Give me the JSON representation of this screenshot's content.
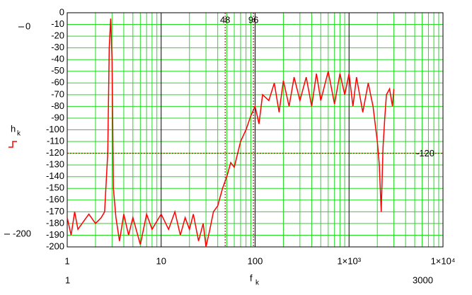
{
  "chart_data": {
    "type": "line",
    "ylabel": "h",
    "ylabel_sub": "k",
    "xlabel": "f",
    "xlabel_sub": "k",
    "log_x": true,
    "grid": true,
    "grid_color": "#22dd22",
    "major_grid_color": "#000000",
    "xlim": [
      1,
      10000
    ],
    "ylim": [
      -200,
      0
    ],
    "xticks": [
      1,
      10,
      100,
      {
        "value": 1000,
        "label": "1×10³"
      },
      {
        "value": 10000,
        "label": "1×10⁴"
      }
    ],
    "yticks": [
      0,
      -10,
      -20,
      -30,
      -40,
      -50,
      -60,
      -70,
      -80,
      -90,
      -100,
      -110,
      -120,
      -130,
      -140,
      -150,
      -160,
      -170,
      -180,
      -190,
      -200
    ],
    "data_range": [
      1,
      3000
    ],
    "markers_x": [
      48,
      96
    ],
    "markers_y": [
      -120
    ],
    "series": [
      {
        "color": "#ff0000",
        "x": [
          1,
          1.1,
          1.2,
          1.3,
          1.5,
          1.7,
          2,
          2.3,
          2.5,
          2.7,
          2.8,
          2.9,
          3.0,
          3.1,
          3.3,
          3.6,
          4,
          4.5,
          5,
          6,
          7,
          8,
          9,
          10,
          12,
          14,
          16,
          18,
          20,
          22,
          25,
          28,
          30,
          33,
          36,
          40,
          45,
          50,
          55,
          60,
          70,
          80,
          90,
          100,
          110,
          120,
          140,
          160,
          180,
          200,
          230,
          260,
          300,
          350,
          400,
          450,
          500,
          600,
          700,
          800,
          900,
          1000,
          1100,
          1200,
          1400,
          1600,
          1800,
          2000,
          2100,
          2200,
          2300,
          2400,
          2500,
          2700,
          2900,
          3000
        ],
        "values": [
          -175,
          -190,
          -170,
          -185,
          -178,
          -172,
          -180,
          -175,
          -170,
          -120,
          -30,
          -5,
          -40,
          -150,
          -175,
          -195,
          -172,
          -190,
          -175,
          -198,
          -172,
          -185,
          -178,
          -172,
          -185,
          -170,
          -190,
          -175,
          -185,
          -172,
          -195,
          -180,
          -200,
          -185,
          -170,
          -165,
          -150,
          -140,
          -128,
          -132,
          -110,
          -100,
          -88,
          -80,
          -95,
          -70,
          -75,
          -60,
          -85,
          -58,
          -80,
          -55,
          -75,
          -55,
          -80,
          -52,
          -75,
          -50,
          -78,
          -52,
          -70,
          -52,
          -80,
          -55,
          -85,
          -60,
          -80,
          -110,
          -130,
          -170,
          -115,
          -90,
          -70,
          -65,
          -80,
          -65
        ]
      }
    ]
  }
}
